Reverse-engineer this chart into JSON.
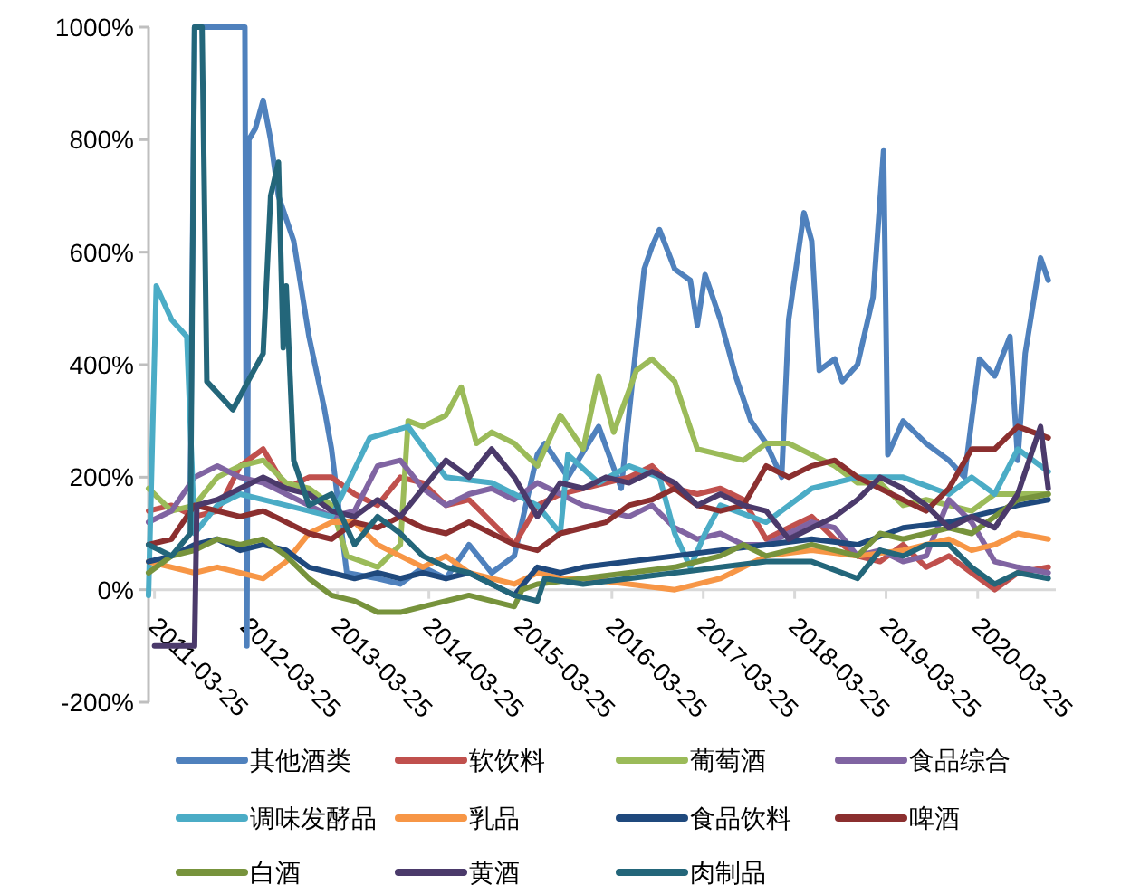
{
  "chart_data": {
    "type": "line",
    "legend": "bottom",
    "xlim": [
      "2011-03-01",
      "2021-01-31"
    ],
    "xticks": [
      "2011-03-25",
      "2012-03-25",
      "2013-03-25",
      "2014-03-25",
      "2015-03-25",
      "2016-03-25",
      "2017-03-25",
      "2018-03-25",
      "2019-03-25",
      "2020-03-25"
    ],
    "ylim": [
      -200,
      1000
    ],
    "yticks": [
      {
        "value": -200,
        "label": "-200%"
      },
      {
        "value": 0,
        "label": "0%"
      },
      {
        "value": 200,
        "label": "200%"
      },
      {
        "value": 400,
        "label": "400%"
      },
      {
        "value": 600,
        "label": "600%"
      },
      {
        "value": 800,
        "label": "800%"
      },
      {
        "value": 1000,
        "label": "1000%"
      }
    ],
    "series": [
      {
        "name": "其他酒类",
        "color": "#4f81bd",
        "x": [
          "2011-08-15",
          "2011-09-01",
          "2011-10-15",
          "2012-03-20",
          "2012-03-28",
          "2012-04-05",
          "2012-05",
          "2012-06",
          "2012-07",
          "2012-08",
          "2012-10",
          "2012-12",
          "2013-02",
          "2013-03",
          "2013-05",
          "2013-09",
          "2013-12",
          "2014-03",
          "2014-06",
          "2014-09",
          "2014-12",
          "2015-03",
          "2015-06",
          "2015-07",
          "2015-10",
          "2016-02",
          "2016-05",
          "2016-08",
          "2016-09",
          "2016-10",
          "2016-12",
          "2017-02",
          "2017-03",
          "2017-04",
          "2017-06",
          "2017-08",
          "2017-10",
          "2017-12",
          "2018-02",
          "2018-03",
          "2018-05",
          "2018-06",
          "2018-07",
          "2018-09",
          "2018-10",
          "2018-12",
          "2019-02",
          "2019-03-15",
          "2019-04",
          "2019-06",
          "2019-09",
          "2019-12",
          "2020-02",
          "2020-04",
          "2020-06",
          "2020-08",
          "2020-09",
          "2020-10",
          "2020-12",
          "2021-01"
        ],
        "values": [
          180,
          1000,
          1000,
          1000,
          -100,
          800,
          820,
          870,
          800,
          700,
          620,
          450,
          320,
          250,
          30,
          20,
          10,
          40,
          20,
          80,
          30,
          60,
          240,
          260,
          200,
          290,
          180,
          570,
          610,
          640,
          570,
          550,
          470,
          560,
          480,
          380,
          300,
          260,
          200,
          480,
          670,
          620,
          390,
          410,
          370,
          400,
          520,
          780,
          240,
          300,
          260,
          230,
          200,
          410,
          380,
          450,
          230,
          420,
          590,
          550
        ]
      },
      {
        "name": "软饮料",
        "color": "#c0504d",
        "x": [
          "2011-03",
          "2011-06",
          "2011-09",
          "2011-12",
          "2012-03",
          "2012-06",
          "2012-09",
          "2012-12",
          "2013-03",
          "2013-06",
          "2013-09",
          "2013-12",
          "2014-03",
          "2014-06",
          "2014-09",
          "2014-12",
          "2015-03",
          "2015-06",
          "2015-09",
          "2015-12",
          "2016-03",
          "2016-06",
          "2016-09",
          "2016-12",
          "2017-03",
          "2017-06",
          "2017-09",
          "2017-12",
          "2018-03",
          "2018-06",
          "2018-09",
          "2018-12",
          "2019-03",
          "2019-06",
          "2019-09",
          "2019-12",
          "2020-03",
          "2020-06",
          "2020-09",
          "2021-01"
        ],
        "values": [
          140,
          150,
          130,
          140,
          220,
          250,
          180,
          200,
          200,
          170,
          150,
          200,
          190,
          150,
          160,
          120,
          80,
          150,
          170,
          180,
          190,
          200,
          220,
          180,
          170,
          180,
          160,
          90,
          110,
          130,
          90,
          60,
          50,
          80,
          40,
          60,
          30,
          0,
          30,
          40
        ]
      },
      {
        "name": "葡萄酒",
        "color": "#9bbb59",
        "x": [
          "2011-03",
          "2011-06",
          "2011-09",
          "2011-12",
          "2012-03",
          "2012-06",
          "2012-09",
          "2012-12",
          "2013-03",
          "2013-05",
          "2013-09",
          "2013-12",
          "2014-01",
          "2014-03",
          "2014-06",
          "2014-08",
          "2014-10",
          "2014-12",
          "2015-03",
          "2015-06",
          "2015-09",
          "2015-12",
          "2016-02",
          "2016-04",
          "2016-07",
          "2016-09",
          "2016-12",
          "2017-03",
          "2017-06",
          "2017-09",
          "2017-12",
          "2018-03",
          "2018-06",
          "2018-09",
          "2018-12",
          "2019-03",
          "2019-06",
          "2019-09",
          "2019-12",
          "2020-03",
          "2020-06",
          "2020-09",
          "2021-01"
        ],
        "values": [
          180,
          140,
          150,
          200,
          220,
          230,
          190,
          180,
          150,
          60,
          40,
          80,
          300,
          290,
          310,
          360,
          260,
          280,
          260,
          220,
          310,
          250,
          380,
          280,
          390,
          410,
          370,
          250,
          240,
          230,
          260,
          260,
          240,
          220,
          190,
          190,
          150,
          160,
          150,
          140,
          170,
          170,
          170
        ]
      },
      {
        "name": "食品综合",
        "color": "#8064a2",
        "x": [
          "2011-03",
          "2011-06",
          "2011-09",
          "2011-12",
          "2012-03",
          "2012-06",
          "2012-09",
          "2012-12",
          "2013-03",
          "2013-06",
          "2013-09",
          "2013-12",
          "2014-03",
          "2014-06",
          "2014-09",
          "2014-12",
          "2015-03",
          "2015-06",
          "2015-09",
          "2015-12",
          "2016-03",
          "2016-06",
          "2016-09",
          "2016-12",
          "2017-03",
          "2017-06",
          "2017-09",
          "2017-12",
          "2018-03",
          "2018-06",
          "2018-09",
          "2018-12",
          "2019-03",
          "2019-06",
          "2019-09",
          "2019-12",
          "2020-03",
          "2020-06",
          "2020-09",
          "2021-01"
        ],
        "values": [
          120,
          140,
          200,
          220,
          200,
          190,
          170,
          150,
          130,
          140,
          220,
          230,
          180,
          150,
          170,
          180,
          160,
          190,
          170,
          150,
          140,
          130,
          150,
          110,
          90,
          100,
          80,
          80,
          100,
          120,
          110,
          60,
          70,
          50,
          60,
          160,
          120,
          50,
          40,
          30
        ]
      },
      {
        "name": "调味发酵品",
        "color": "#4bacc6",
        "x": [
          "2011-03",
          "2011-04",
          "2011-06",
          "2011-08",
          "2011-09",
          "2011-12",
          "2012-03",
          "2012-06",
          "2012-09",
          "2012-12",
          "2013-03",
          "2013-08",
          "2014-01",
          "2014-06",
          "2014-12",
          "2015-03",
          "2015-06",
          "2015-09",
          "2015-10",
          "2016-02",
          "2016-06",
          "2016-10",
          "2016-12",
          "2017-02",
          "2017-04",
          "2017-06",
          "2017-12",
          "2018-06",
          "2018-12",
          "2019-06",
          "2019-12",
          "2020-03",
          "2020-06",
          "2020-09",
          "2021-01"
        ],
        "values": [
          -10,
          540,
          480,
          450,
          100,
          150,
          170,
          160,
          150,
          140,
          130,
          270,
          290,
          200,
          190,
          170,
          150,
          100,
          240,
          190,
          220,
          200,
          100,
          40,
          100,
          150,
          120,
          180,
          200,
          200,
          170,
          200,
          170,
          250,
          210
        ]
      },
      {
        "name": "乳品",
        "color": "#f79646",
        "x": [
          "2011-03",
          "2011-06",
          "2011-09",
          "2011-12",
          "2012-03",
          "2012-06",
          "2012-09",
          "2012-12",
          "2013-03",
          "2013-06",
          "2013-09",
          "2013-12",
          "2014-03",
          "2014-06",
          "2014-09",
          "2014-12",
          "2015-03",
          "2015-06",
          "2015-09",
          "2015-12",
          "2016-06",
          "2016-12",
          "2017-06",
          "2017-12",
          "2018-06",
          "2018-12",
          "2019-06",
          "2019-12",
          "2020-03",
          "2020-06",
          "2020-09",
          "2021-01"
        ],
        "values": [
          50,
          40,
          30,
          40,
          30,
          20,
          50,
          100,
          120,
          120,
          80,
          60,
          40,
          60,
          30,
          20,
          10,
          30,
          20,
          20,
          10,
          0,
          20,
          60,
          70,
          60,
          70,
          90,
          70,
          80,
          100,
          90
        ]
      },
      {
        "name": "食品饮料",
        "color": "#1f497d",
        "x": [
          "2011-03",
          "2011-06",
          "2011-09",
          "2011-12",
          "2012-03",
          "2012-06",
          "2012-09",
          "2012-12",
          "2013-03",
          "2013-06",
          "2013-09",
          "2013-12",
          "2014-03",
          "2014-06",
          "2014-09",
          "2014-12",
          "2015-03",
          "2015-06",
          "2015-09",
          "2015-12",
          "2016-06",
          "2016-12",
          "2017-06",
          "2017-12",
          "2018-06",
          "2018-12",
          "2019-06",
          "2019-12",
          "2020-06",
          "2020-09",
          "2021-01"
        ],
        "values": [
          50,
          60,
          80,
          90,
          70,
          80,
          70,
          40,
          30,
          20,
          30,
          20,
          30,
          20,
          30,
          10,
          -10,
          40,
          30,
          40,
          50,
          60,
          70,
          80,
          90,
          80,
          110,
          120,
          140,
          150,
          160
        ]
      },
      {
        "name": "啤酒",
        "color": "#8b2f2f",
        "x": [
          "2011-03",
          "2011-06",
          "2011-09",
          "2011-12",
          "2012-03",
          "2012-06",
          "2012-09",
          "2012-12",
          "2013-03",
          "2013-06",
          "2013-09",
          "2013-12",
          "2014-03",
          "2014-06",
          "2014-09",
          "2014-12",
          "2015-03",
          "2015-06",
          "2015-09",
          "2015-12",
          "2016-03",
          "2016-06",
          "2016-09",
          "2016-12",
          "2017-03",
          "2017-06",
          "2017-09",
          "2017-12",
          "2018-03",
          "2018-06",
          "2018-09",
          "2018-12",
          "2019-03",
          "2019-06",
          "2019-09",
          "2019-12",
          "2020-03",
          "2020-06",
          "2020-09",
          "2021-01"
        ],
        "values": [
          80,
          90,
          150,
          140,
          130,
          140,
          120,
          100,
          90,
          120,
          110,
          130,
          110,
          100,
          120,
          100,
          80,
          70,
          100,
          110,
          120,
          150,
          160,
          180,
          150,
          140,
          150,
          220,
          200,
          220,
          230,
          200,
          180,
          160,
          140,
          180,
          250,
          250,
          290,
          270
        ]
      },
      {
        "name": "白酒",
        "color": "#77933c",
        "x": [
          "2011-03",
          "2011-06",
          "2011-09",
          "2011-12",
          "2012-03",
          "2012-06",
          "2012-09",
          "2012-12",
          "2013-03",
          "2013-06",
          "2013-09",
          "2013-12",
          "2014-03",
          "2014-06",
          "2014-09",
          "2014-12",
          "2015-03",
          "2015-04",
          "2015-06",
          "2015-12",
          "2016-06",
          "2016-12",
          "2017-06",
          "2017-09",
          "2017-12",
          "2018-03",
          "2018-06",
          "2018-09",
          "2018-12",
          "2019-03",
          "2019-06",
          "2019-09",
          "2019-12",
          "2020-03",
          "2020-06",
          "2020-09",
          "2021-01"
        ],
        "values": [
          30,
          60,
          70,
          90,
          80,
          90,
          60,
          20,
          -10,
          -20,
          -40,
          -40,
          -30,
          -20,
          -10,
          -20,
          -30,
          0,
          10,
          20,
          30,
          40,
          60,
          80,
          60,
          70,
          80,
          70,
          60,
          100,
          90,
          100,
          110,
          100,
          130,
          160,
          170
        ]
      },
      {
        "name": "黄酒",
        "color": "#4b3a6b",
        "x": [
          "2011-03-25",
          "2011-09-01",
          "2011-09-10",
          "2011-12",
          "2012-03",
          "2012-06",
          "2012-09",
          "2012-12",
          "2013-03",
          "2013-06",
          "2013-09",
          "2013-12",
          "2014-03",
          "2014-06",
          "2014-09",
          "2014-12",
          "2015-03",
          "2015-06",
          "2015-09",
          "2015-12",
          "2016-03",
          "2016-06",
          "2016-09",
          "2016-12",
          "2017-03",
          "2017-06",
          "2017-09",
          "2017-12",
          "2018-03",
          "2018-06",
          "2018-09",
          "2018-12",
          "2019-03",
          "2019-06",
          "2019-09",
          "2019-12",
          "2020-03",
          "2020-06",
          "2020-09",
          "2020-12",
          "2021-01"
        ],
        "values": [
          -100,
          -100,
          150,
          160,
          180,
          200,
          180,
          170,
          140,
          130,
          160,
          130,
          180,
          230,
          200,
          250,
          200,
          130,
          190,
          180,
          200,
          190,
          210,
          190,
          150,
          170,
          150,
          140,
          90,
          110,
          130,
          160,
          200,
          180,
          150,
          110,
          130,
          110,
          170,
          290,
          180
        ]
      },
      {
        "name": "肉制品",
        "color": "#23667a",
        "x": [
          "2011-03",
          "2011-06",
          "2011-08-15",
          "2011-09-01",
          "2011-10-01",
          "2011-10-20",
          "2011-12",
          "2012-02",
          "2012-04",
          "2012-06",
          "2012-07-01",
          "2012-08",
          "2012-08-20",
          "2012-09",
          "2012-10",
          "2012-12",
          "2013-03",
          "2013-06",
          "2013-09",
          "2013-12",
          "2014-03",
          "2014-06",
          "2014-09",
          "2014-12",
          "2015-03",
          "2015-06",
          "2015-07",
          "2015-12",
          "2016-06",
          "2016-12",
          "2017-06",
          "2017-12",
          "2018-06",
          "2018-12",
          "2019-03",
          "2019-06",
          "2019-09",
          "2019-12",
          "2020-03",
          "2020-06",
          "2020-09",
          "2021-01"
        ],
        "values": [
          80,
          60,
          100,
          1000,
          1000,
          370,
          350,
          320,
          370,
          420,
          700,
          760,
          430,
          540,
          230,
          150,
          170,
          80,
          130,
          100,
          60,
          40,
          30,
          10,
          -10,
          -20,
          20,
          10,
          20,
          30,
          40,
          50,
          50,
          20,
          70,
          60,
          80,
          80,
          40,
          10,
          30,
          20
        ]
      }
    ]
  }
}
